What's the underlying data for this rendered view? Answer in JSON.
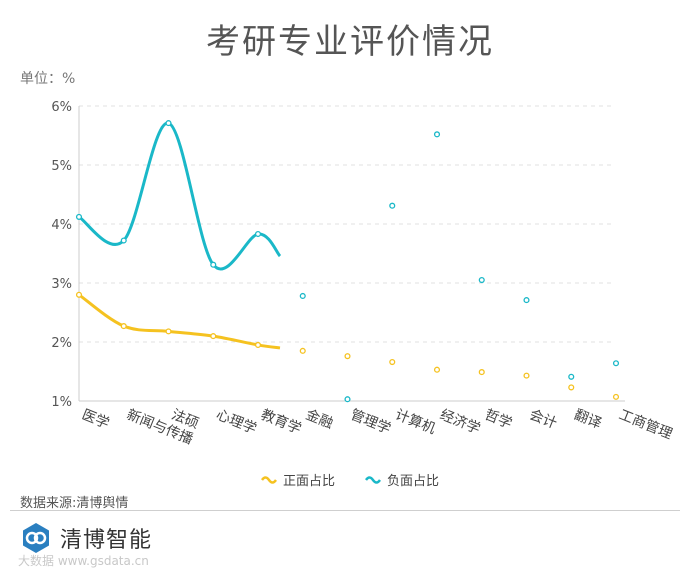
{
  "header": {
    "title": "考研专业评价情况",
    "unit": "单位：%"
  },
  "chart_data": {
    "type": "line",
    "categories": [
      "医学",
      "新闻与传播",
      "法硕",
      "心理学",
      "教育学",
      "金融",
      "管理学",
      "计算机",
      "经济学",
      "哲学",
      "会计",
      "翻译",
      "工商管理"
    ],
    "y_ticks": [
      "1%",
      "2%",
      "3%",
      "4%",
      "5%",
      "6%"
    ],
    "ylim": [
      1,
      6
    ],
    "series": [
      {
        "name": "正面占比",
        "color": "#f5c220",
        "values": [
          2.8,
          2.27,
          2.18,
          2.1,
          1.95,
          1.85,
          1.76,
          1.66,
          1.53,
          1.49,
          1.43,
          1.23,
          1.07
        ]
      },
      {
        "name": "负面占比",
        "color": "#1ab8c8",
        "values": [
          4.12,
          3.72,
          5.71,
          3.31,
          3.83,
          2.78,
          1.03,
          4.31,
          5.52,
          3.05,
          2.71,
          1.41,
          1.64
        ]
      }
    ],
    "legend_position": "bottom",
    "grid": true
  },
  "footer": {
    "source": "数据来源:清博舆情",
    "brand": "清博智能",
    "watermark": "大数据 www.gsdata.cn"
  },
  "icons": {
    "logo": "qingbo-logo-icon"
  }
}
